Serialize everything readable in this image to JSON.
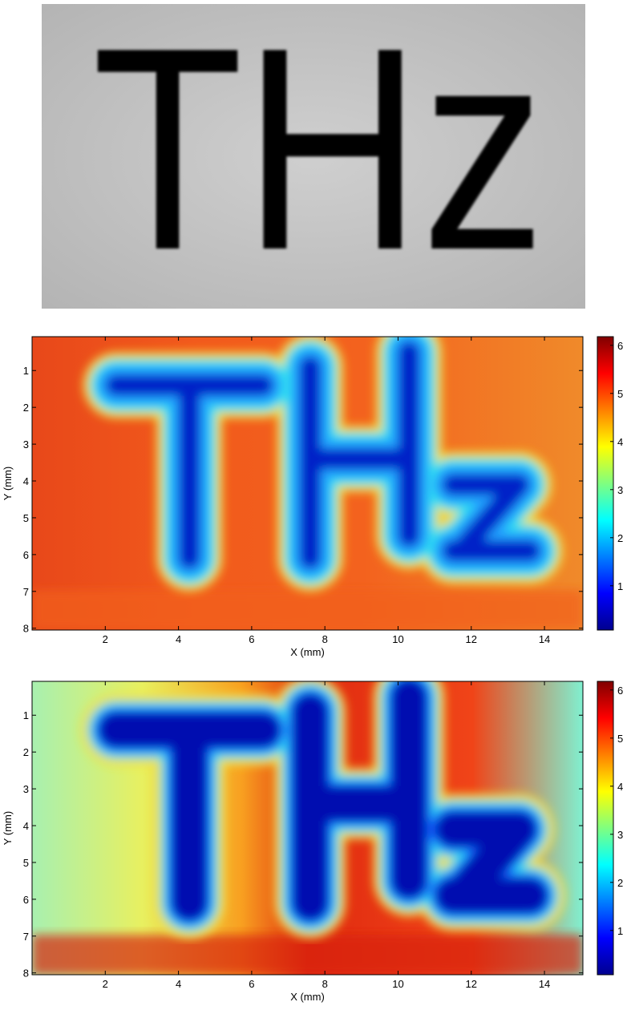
{
  "photo": {
    "text": "THz"
  },
  "chart_data": [
    {
      "type": "heatmap",
      "xlabel": "X (mm)",
      "ylabel": "Y (mm)",
      "xlim": [
        0,
        15.05
      ],
      "xticks": [
        2,
        4,
        6,
        8,
        10,
        12,
        14
      ],
      "ylim": [
        8.05,
        0.08
      ],
      "yticks": [
        1,
        2,
        3,
        4,
        5,
        6,
        7,
        8
      ],
      "colorbar": {
        "clim": [
          0.08,
          6.18
        ],
        "ticks": [
          1,
          2,
          3,
          4,
          5,
          6
        ],
        "colormap": "jet"
      }
    },
    {
      "type": "heatmap",
      "xlabel": "X (mm)",
      "ylabel": "Y (mm)",
      "xlim": [
        0,
        15.05
      ],
      "xticks": [
        2,
        4,
        6,
        8,
        10,
        12,
        14
      ],
      "ylim": [
        8.05,
        0.08
      ],
      "yticks": [
        1,
        2,
        3,
        4,
        5,
        6,
        7,
        8
      ],
      "colorbar": {
        "clim": [
          0.08,
          6.18
        ],
        "ticks": [
          1,
          2,
          3,
          4,
          5,
          6
        ],
        "colormap": "jet"
      }
    }
  ]
}
